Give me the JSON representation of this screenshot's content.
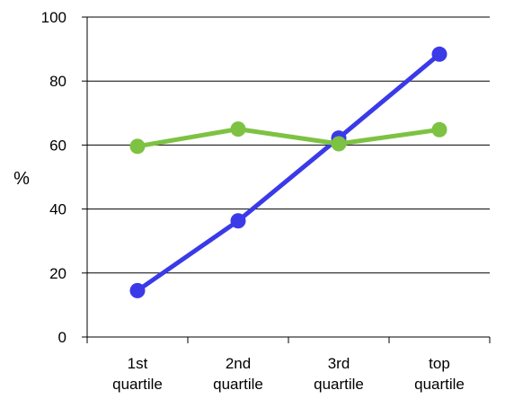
{
  "chart_data": {
    "type": "line",
    "title": "",
    "xlabel": "",
    "ylabel": "%",
    "ylim": [
      0,
      100
    ],
    "yticks": [
      0,
      20,
      40,
      60,
      80,
      100
    ],
    "categories": [
      [
        "1st",
        "quartile"
      ],
      [
        "2nd",
        "quartile"
      ],
      [
        "3rd",
        "quartile"
      ],
      [
        "top",
        "quartile"
      ]
    ],
    "grid": "horizontal",
    "legend": "none",
    "series": [
      {
        "color": "#3a3ae8",
        "values": [
          14.5,
          36.3,
          62.2,
          88.4
        ]
      },
      {
        "color": "#7dc242",
        "values": [
          59.6,
          65.0,
          60.4,
          64.8
        ]
      }
    ]
  }
}
